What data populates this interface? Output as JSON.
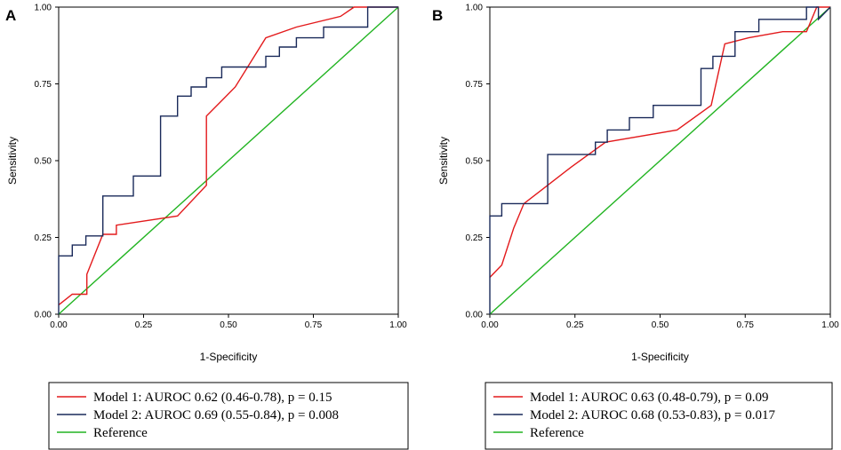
{
  "chart_data": [
    {
      "type": "line",
      "panel": "A",
      "xlabel": "1-Specificity",
      "ylabel": "Sensitivity",
      "xlim": [
        0,
        1
      ],
      "ylim": [
        0,
        1
      ],
      "xticks": [
        "0.00",
        "0.25",
        "0.50",
        "0.75",
        "1.00"
      ],
      "yticks": [
        "0.00",
        "0.25",
        "0.50",
        "0.75",
        "1.00"
      ],
      "grid": false,
      "legend_position": "bottom",
      "series": [
        {
          "name": "Model 1: AUROC 0.62 (0.46-0.78), p = 0.15",
          "color": "#e31a1c",
          "x": [
            0,
            0.04,
            0.083,
            0.083,
            0.13,
            0.17,
            0.17,
            0.35,
            0.435,
            0.435,
            0.52,
            0.61,
            0.7,
            0.83,
            0.87,
            1.0
          ],
          "y": [
            0.03,
            0.065,
            0.065,
            0.13,
            0.26,
            0.26,
            0.29,
            0.32,
            0.42,
            0.645,
            0.74,
            0.9,
            0.935,
            0.97,
            1.0,
            1.0
          ]
        },
        {
          "name": "Model 2: AUROC 0.69 (0.55-0.84), p = 0.008",
          "color": "#1a2a5a",
          "x": [
            0,
            0,
            0.04,
            0.04,
            0.08,
            0.08,
            0.13,
            0.13,
            0.22,
            0.22,
            0.3,
            0.3,
            0.35,
            0.35,
            0.39,
            0.39,
            0.435,
            0.435,
            0.48,
            0.48,
            0.61,
            0.61,
            0.65,
            0.65,
            0.7,
            0.7,
            0.78,
            0.78,
            0.91,
            0.91,
            1.0
          ],
          "y": [
            0,
            0.19,
            0.19,
            0.225,
            0.225,
            0.255,
            0.255,
            0.385,
            0.385,
            0.45,
            0.45,
            0.645,
            0.645,
            0.71,
            0.71,
            0.74,
            0.74,
            0.77,
            0.77,
            0.805,
            0.805,
            0.84,
            0.84,
            0.87,
            0.87,
            0.9,
            0.9,
            0.935,
            0.935,
            1.0,
            1.0
          ]
        },
        {
          "name": "Reference",
          "color": "#22b422",
          "x": [
            0,
            1
          ],
          "y": [
            0,
            1
          ]
        }
      ]
    },
    {
      "type": "line",
      "panel": "B",
      "xlabel": "1-Specificity",
      "ylabel": "Sensitivity",
      "xlim": [
        0,
        1
      ],
      "ylim": [
        0,
        1
      ],
      "xticks": [
        "0.00",
        "0.25",
        "0.50",
        "0.75",
        "1.00"
      ],
      "yticks": [
        "0.00",
        "0.25",
        "0.50",
        "0.75",
        "1.00"
      ],
      "grid": false,
      "legend_position": "bottom",
      "series": [
        {
          "name": "Model 1: AUROC 0.63 (0.48-0.79), p = 0.09",
          "color": "#e31a1c",
          "x": [
            0,
            0.035,
            0.07,
            0.1,
            0.17,
            0.24,
            0.34,
            0.55,
            0.65,
            0.69,
            0.76,
            0.86,
            0.93,
            0.96,
            1.0
          ],
          "y": [
            0.12,
            0.16,
            0.28,
            0.36,
            0.42,
            0.48,
            0.56,
            0.6,
            0.68,
            0.88,
            0.9,
            0.92,
            0.92,
            1.0,
            1.0
          ]
        },
        {
          "name": "Model 2: AUROC 0.68 (0.53-0.83), p = 0.017",
          "color": "#1a2a5a",
          "x": [
            0,
            0,
            0.035,
            0.035,
            0.17,
            0.17,
            0.31,
            0.31,
            0.345,
            0.345,
            0.41,
            0.41,
            0.48,
            0.48,
            0.62,
            0.62,
            0.655,
            0.655,
            0.72,
            0.72,
            0.79,
            0.79,
            0.93,
            0.93,
            0.965,
            0.965,
            1.0
          ],
          "y": [
            0,
            0.32,
            0.32,
            0.36,
            0.36,
            0.52,
            0.52,
            0.56,
            0.56,
            0.6,
            0.6,
            0.64,
            0.64,
            0.68,
            0.68,
            0.8,
            0.8,
            0.84,
            0.84,
            0.92,
            0.92,
            0.96,
            0.96,
            1.0,
            1.0,
            0.96,
            1.0
          ]
        },
        {
          "name": "Reference",
          "color": "#22b422",
          "x": [
            0,
            1
          ],
          "y": [
            0,
            1
          ]
        }
      ]
    }
  ]
}
